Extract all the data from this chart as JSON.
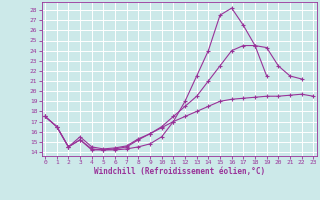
{
  "background_color": "#cce9e9",
  "grid_color": "#ffffff",
  "line_color": "#993399",
  "marker": "+",
  "xlabel": "Windchill (Refroidissement éolien,°C)",
  "yticks": [
    14,
    15,
    16,
    17,
    18,
    19,
    20,
    21,
    22,
    23,
    24,
    25,
    26,
    27,
    28
  ],
  "xticks": [
    0,
    1,
    2,
    3,
    4,
    5,
    6,
    7,
    8,
    9,
    10,
    11,
    12,
    13,
    14,
    15,
    16,
    17,
    18,
    19,
    20,
    21,
    22,
    23
  ],
  "xlim": [
    -0.3,
    23.3
  ],
  "ylim": [
    13.6,
    28.8
  ],
  "lines": [
    {
      "x": [
        0,
        1,
        2,
        3,
        4,
        5,
        6,
        7,
        8,
        9,
        10,
        11,
        12,
        13,
        14,
        15,
        16,
        17,
        18,
        19,
        20
      ],
      "y": [
        17.5,
        16.5,
        14.5,
        15.2,
        14.2,
        14.2,
        14.2,
        14.3,
        14.5,
        14.8,
        15.5,
        17.0,
        19.0,
        21.5,
        24.0,
        27.5,
        28.2,
        26.5,
        24.5,
        21.5,
        null
      ]
    },
    {
      "x": [
        0,
        1,
        2,
        3,
        4,
        5,
        6,
        7,
        8,
        9,
        10,
        11,
        12,
        13,
        14,
        15,
        16,
        17,
        18,
        19,
        20,
        21,
        22
      ],
      "y": [
        17.5,
        16.5,
        14.5,
        15.2,
        14.3,
        14.2,
        14.3,
        14.5,
        15.2,
        15.8,
        16.5,
        17.5,
        18.5,
        19.5,
        21.0,
        22.5,
        24.0,
        24.5,
        24.5,
        24.3,
        22.5,
        21.5,
        21.2
      ]
    },
    {
      "x": [
        0,
        1,
        2,
        3,
        4,
        5,
        6,
        7,
        8,
        9,
        10,
        11,
        12,
        13,
        14,
        15,
        16,
        17,
        18,
        19,
        20,
        21,
        22,
        23
      ],
      "y": [
        17.5,
        16.5,
        14.5,
        15.5,
        14.5,
        14.3,
        14.4,
        14.6,
        15.3,
        15.8,
        16.4,
        17.0,
        17.5,
        18.0,
        18.5,
        19.0,
        19.2,
        19.3,
        19.4,
        19.5,
        19.5,
        19.6,
        19.7,
        19.5
      ]
    }
  ]
}
